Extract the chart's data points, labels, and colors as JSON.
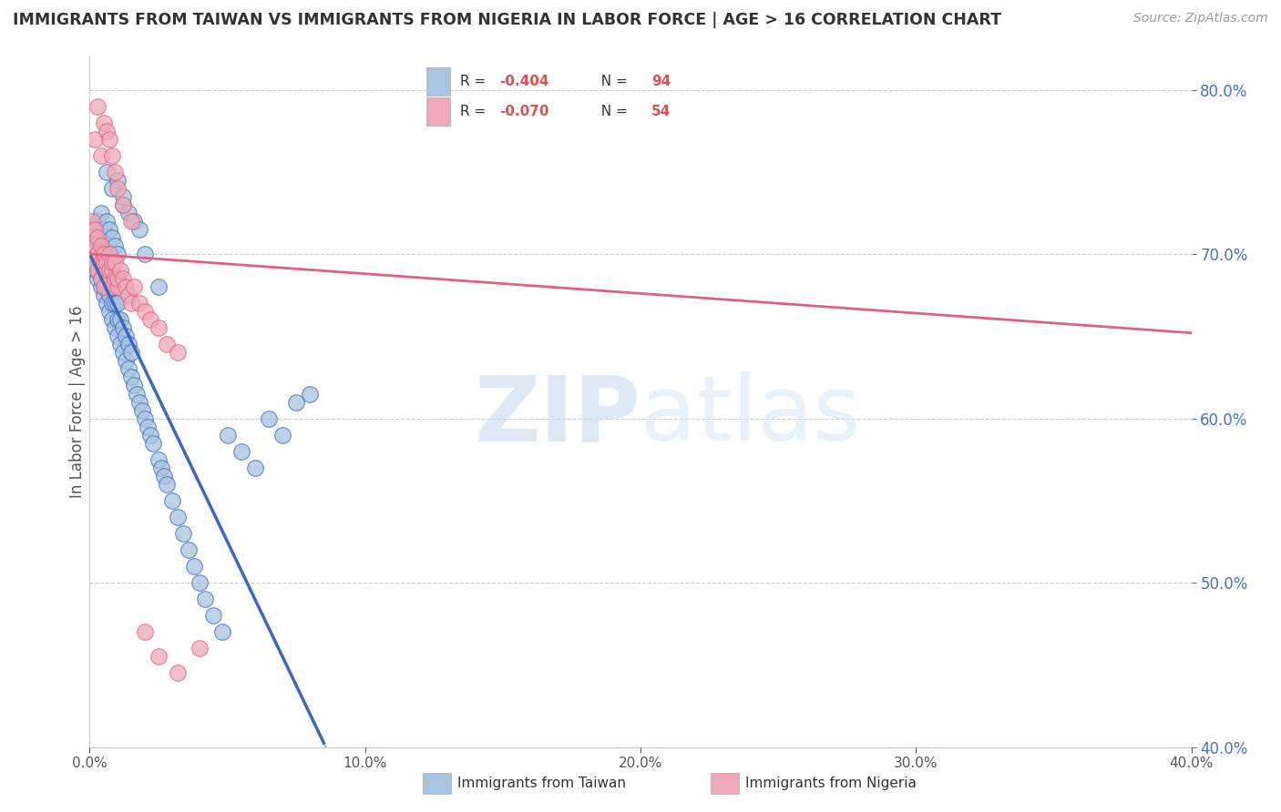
{
  "title": "IMMIGRANTS FROM TAIWAN VS IMMIGRANTS FROM NIGERIA IN LABOR FORCE | AGE > 16 CORRELATION CHART",
  "source": "Source: ZipAtlas.com",
  "ylabel": "In Labor Force | Age > 16",
  "legend1_label": "Immigrants from Taiwan",
  "legend2_label": "Immigrants from Nigeria",
  "legend_r1": "R = -0.404",
  "legend_n1": "N = 94",
  "legend_r2": "R = -0.070",
  "legend_n2": "N = 54",
  "color_taiwan": "#a8c4e0",
  "color_nigeria": "#f0a8b8",
  "trend_taiwan": "#3a6abf",
  "trend_nigeria": "#e06080",
  "xlim": [
    0.0,
    0.4
  ],
  "ylim": [
    0.4,
    0.82
  ],
  "watermark_zip": "ZIP",
  "watermark_atlas": "atlas",
  "bg_color": "#ffffff",
  "grid_color": "#cccccc",
  "taiwan_x": [
    0.001,
    0.001,
    0.001,
    0.002,
    0.002,
    0.002,
    0.002,
    0.003,
    0.003,
    0.003,
    0.003,
    0.003,
    0.004,
    0.004,
    0.004,
    0.004,
    0.005,
    0.005,
    0.005,
    0.005,
    0.005,
    0.006,
    0.006,
    0.006,
    0.006,
    0.007,
    0.007,
    0.007,
    0.008,
    0.008,
    0.008,
    0.009,
    0.009,
    0.01,
    0.01,
    0.01,
    0.011,
    0.011,
    0.012,
    0.012,
    0.013,
    0.013,
    0.014,
    0.014,
    0.015,
    0.015,
    0.016,
    0.017,
    0.018,
    0.019,
    0.02,
    0.021,
    0.022,
    0.023,
    0.025,
    0.026,
    0.027,
    0.028,
    0.03,
    0.032,
    0.034,
    0.036,
    0.038,
    0.04,
    0.042,
    0.045,
    0.048,
    0.05,
    0.055,
    0.06,
    0.065,
    0.07,
    0.075,
    0.08,
    0.002,
    0.003,
    0.004,
    0.004,
    0.005,
    0.006,
    0.007,
    0.008,
    0.009,
    0.01,
    0.012,
    0.014,
    0.016,
    0.018,
    0.02,
    0.025,
    0.006,
    0.008,
    0.01,
    0.012
  ],
  "taiwan_y": [
    0.695,
    0.7,
    0.705,
    0.69,
    0.695,
    0.7,
    0.705,
    0.685,
    0.69,
    0.695,
    0.7,
    0.71,
    0.68,
    0.685,
    0.695,
    0.7,
    0.675,
    0.68,
    0.69,
    0.695,
    0.7,
    0.67,
    0.68,
    0.685,
    0.695,
    0.665,
    0.675,
    0.685,
    0.66,
    0.67,
    0.68,
    0.655,
    0.67,
    0.65,
    0.66,
    0.67,
    0.645,
    0.66,
    0.64,
    0.655,
    0.635,
    0.65,
    0.63,
    0.645,
    0.625,
    0.64,
    0.62,
    0.615,
    0.61,
    0.605,
    0.6,
    0.595,
    0.59,
    0.585,
    0.575,
    0.57,
    0.565,
    0.56,
    0.55,
    0.54,
    0.53,
    0.52,
    0.51,
    0.5,
    0.49,
    0.48,
    0.47,
    0.59,
    0.58,
    0.57,
    0.6,
    0.59,
    0.61,
    0.615,
    0.715,
    0.72,
    0.71,
    0.725,
    0.715,
    0.72,
    0.715,
    0.71,
    0.705,
    0.7,
    0.73,
    0.725,
    0.72,
    0.715,
    0.7,
    0.68,
    0.75,
    0.74,
    0.745,
    0.735
  ],
  "nigeria_x": [
    0.001,
    0.001,
    0.001,
    0.002,
    0.002,
    0.002,
    0.003,
    0.003,
    0.003,
    0.004,
    0.004,
    0.004,
    0.005,
    0.005,
    0.005,
    0.006,
    0.006,
    0.007,
    0.007,
    0.007,
    0.008,
    0.008,
    0.008,
    0.009,
    0.009,
    0.01,
    0.01,
    0.011,
    0.012,
    0.013,
    0.014,
    0.015,
    0.016,
    0.018,
    0.02,
    0.022,
    0.025,
    0.028,
    0.032,
    0.002,
    0.003,
    0.004,
    0.005,
    0.006,
    0.007,
    0.008,
    0.009,
    0.01,
    0.012,
    0.015,
    0.02,
    0.025,
    0.032,
    0.04
  ],
  "nigeria_y": [
    0.7,
    0.71,
    0.72,
    0.695,
    0.705,
    0.715,
    0.69,
    0.7,
    0.71,
    0.685,
    0.695,
    0.705,
    0.68,
    0.695,
    0.7,
    0.69,
    0.695,
    0.685,
    0.69,
    0.7,
    0.68,
    0.69,
    0.695,
    0.685,
    0.695,
    0.68,
    0.685,
    0.69,
    0.685,
    0.68,
    0.675,
    0.67,
    0.68,
    0.67,
    0.665,
    0.66,
    0.655,
    0.645,
    0.64,
    0.77,
    0.79,
    0.76,
    0.78,
    0.775,
    0.77,
    0.76,
    0.75,
    0.74,
    0.73,
    0.72,
    0.47,
    0.455,
    0.445,
    0.46
  ]
}
